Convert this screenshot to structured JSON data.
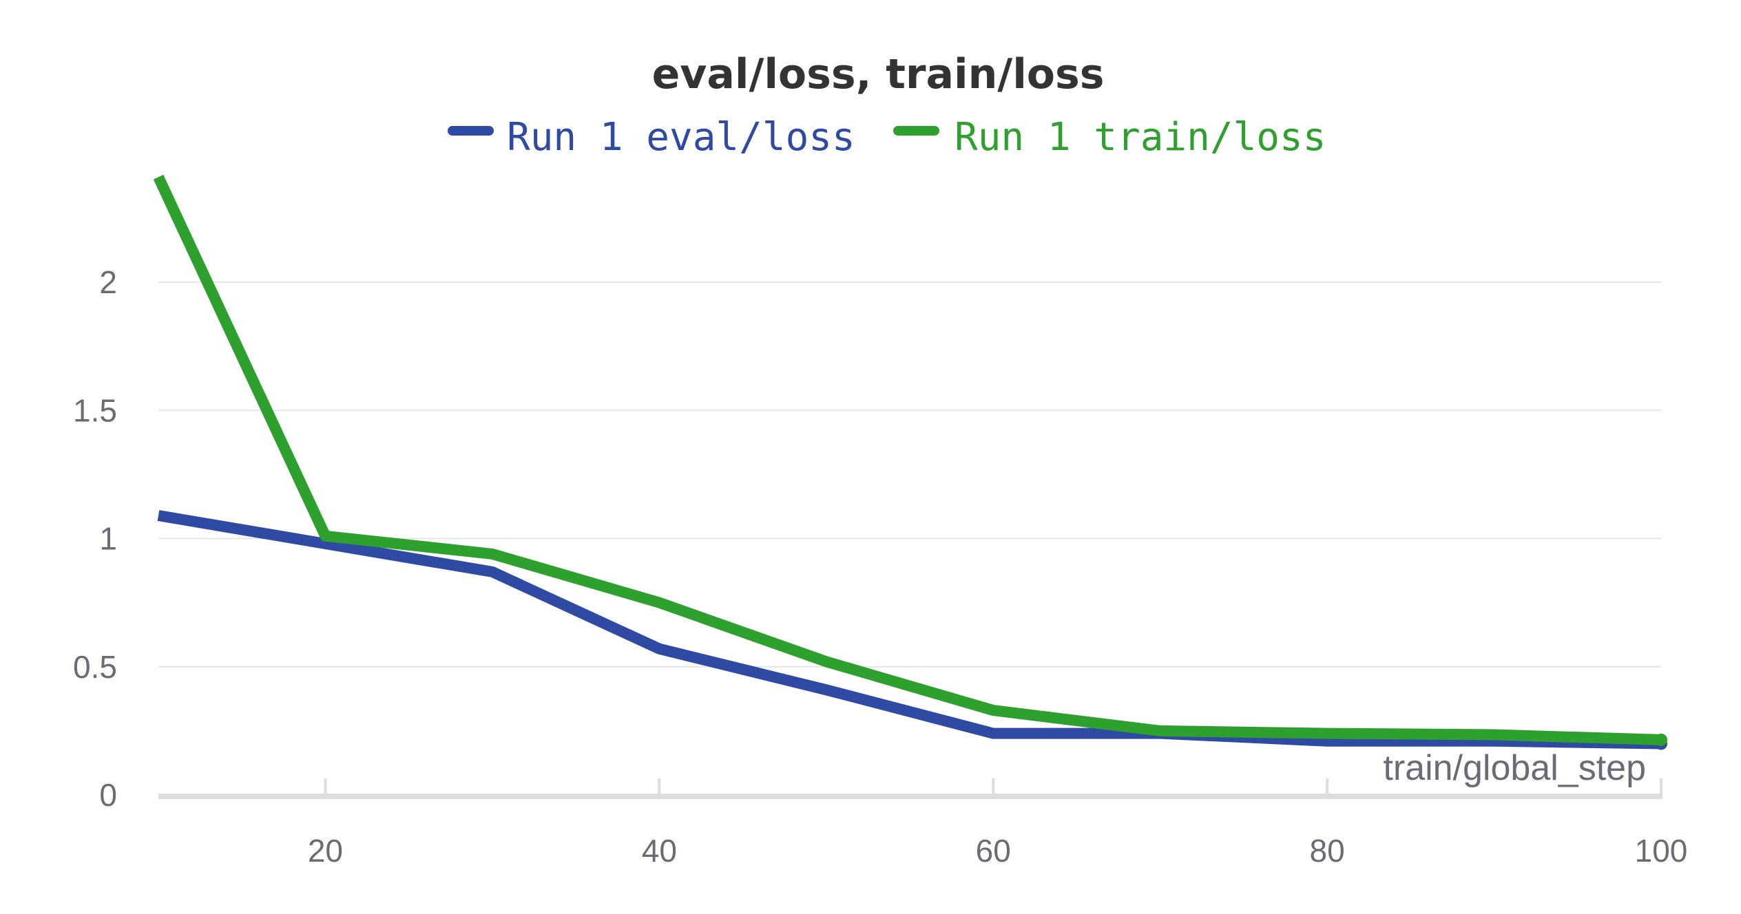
{
  "chart_data": {
    "type": "line",
    "title": "eval/loss, train/loss",
    "xlabel": "train/global_step",
    "ylabel": "",
    "xlim": [
      10,
      100
    ],
    "ylim": [
      0,
      2.45
    ],
    "x_ticks": [
      20,
      40,
      60,
      80,
      100
    ],
    "y_ticks": [
      0,
      0.5,
      1,
      1.5,
      2
    ],
    "x_tick_labels": [
      "20",
      "40",
      "60",
      "80",
      "100"
    ],
    "y_tick_labels": [
      "0",
      "0.5",
      "1",
      "1.5",
      "2"
    ],
    "grid": "horizontal",
    "legend_position": "top",
    "series": [
      {
        "name": "Run 1 eval/loss",
        "color": "#2e4aa3",
        "x": [
          10,
          20,
          30,
          40,
          50,
          60,
          70,
          80,
          90,
          100
        ],
        "y": [
          1.09,
          0.98,
          0.87,
          0.57,
          0.41,
          0.24,
          0.24,
          0.21,
          0.21,
          0.2
        ]
      },
      {
        "name": "Run 1 train/loss",
        "color": "#2ea02e",
        "x": [
          10,
          20,
          30,
          40,
          50,
          60,
          70,
          80,
          90,
          100
        ],
        "y": [
          2.41,
          1.01,
          0.94,
          0.75,
          0.52,
          0.33,
          0.25,
          0.24,
          0.235,
          0.215
        ]
      }
    ]
  }
}
